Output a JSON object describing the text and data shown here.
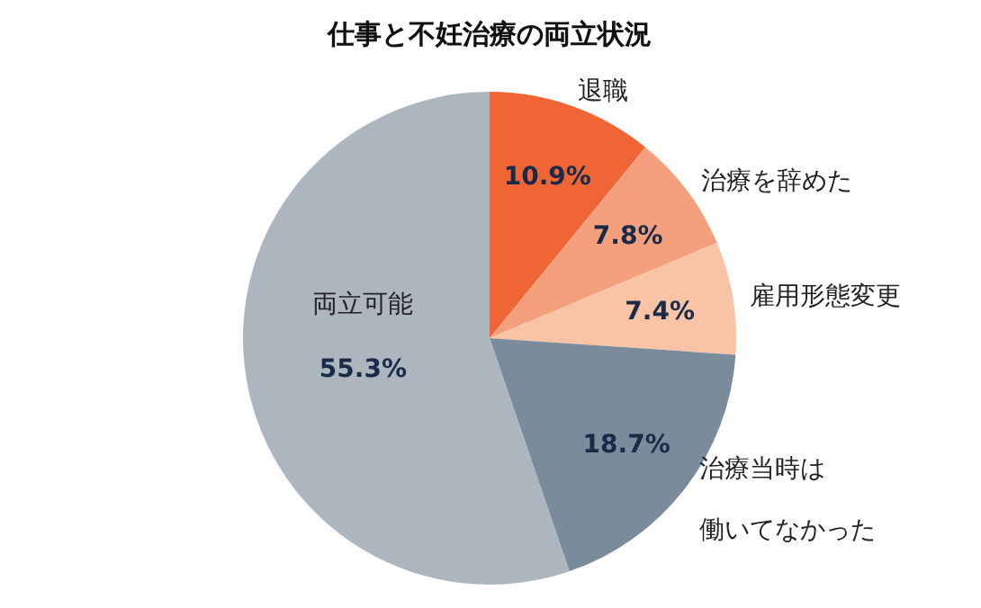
{
  "chart_data": {
    "type": "pie",
    "title": "仕事と不妊治療の両立状況",
    "categories": [
      "退職",
      "治療を辞めた",
      "雇用形態変更",
      "治療当時は働いてなかった",
      "両立可能"
    ],
    "values": [
      10.9,
      7.8,
      7.4,
      18.7,
      55.3
    ],
    "value_labels": [
      "10.9%",
      "7.8%",
      "7.4%",
      "18.7%",
      "55.3%"
    ],
    "colors": [
      "#ef6535",
      "#f5a07c",
      "#f9c3a6",
      "#7a8c9c",
      "#adb6be"
    ]
  }
}
